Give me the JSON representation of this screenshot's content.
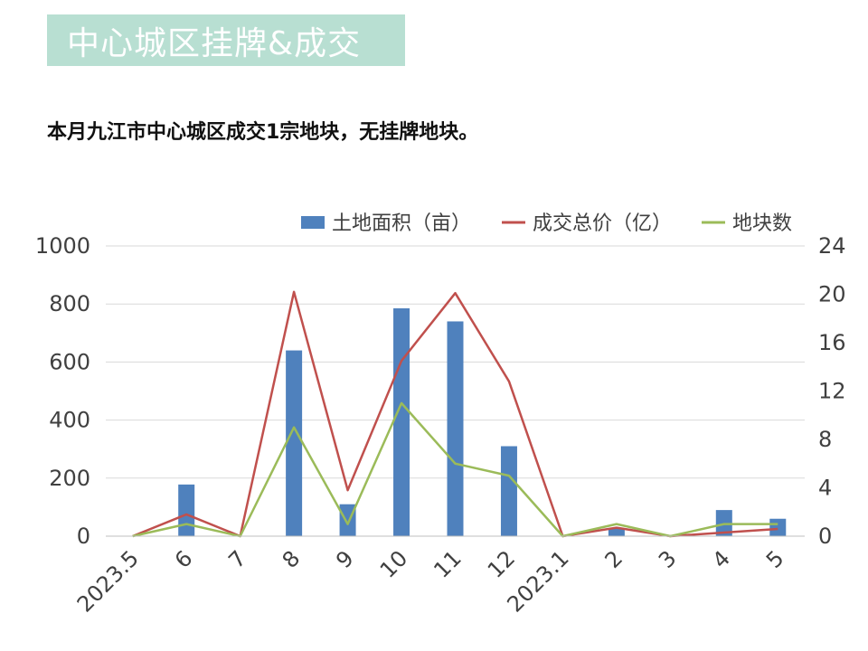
{
  "header": {
    "title": "中心城区挂牌&成交",
    "subtitle": "本月九江市中心城区成交1宗地块，无挂牌地块。"
  },
  "chart_data": {
    "type": "bar+line",
    "categories": [
      "2023.5",
      "6",
      "7",
      "8",
      "9",
      "10",
      "11",
      "12",
      "2023.1",
      "2",
      "3",
      "4",
      "5"
    ],
    "series": [
      {
        "name": "土地面积（亩）",
        "type": "bar",
        "axis": "left",
        "color": "#4f81bd",
        "values": [
          0,
          178,
          0,
          640,
          110,
          785,
          740,
          310,
          0,
          25,
          0,
          90,
          60
        ]
      },
      {
        "name": "成交总价（亿）",
        "type": "line",
        "axis": "right",
        "color": "#c0504d",
        "values": [
          0,
          1.8,
          0,
          20.2,
          3.8,
          14.5,
          20.1,
          12.8,
          0,
          0.7,
          0,
          0.3,
          0.6
        ]
      },
      {
        "name": "地块数",
        "type": "line",
        "axis": "right",
        "color": "#9bbb59",
        "values": [
          0,
          1,
          0,
          9,
          1,
          11,
          6,
          5,
          0,
          1,
          0,
          1,
          1
        ]
      }
    ],
    "y_left": {
      "min": 0,
      "max": 1000,
      "ticks": [
        0,
        200,
        400,
        600,
        800,
        1000
      ]
    },
    "y_right": {
      "min": 0,
      "max": 24,
      "ticks": [
        0,
        4,
        8,
        12,
        16,
        20,
        24
      ]
    },
    "grid": true,
    "legend_position": "top-right"
  }
}
